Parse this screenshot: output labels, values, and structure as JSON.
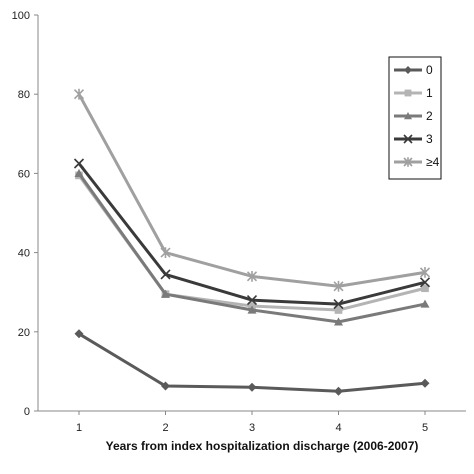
{
  "chart_data": {
    "type": "line",
    "title": "",
    "xlabel": "Years from index hospitalization discharge (2006-2007)",
    "ylabel": "",
    "x": [
      1,
      2,
      3,
      4,
      5
    ],
    "x_tick_labels": [
      "1",
      "2",
      "3",
      "4",
      "5"
    ],
    "ylim": [
      0,
      100
    ],
    "y_ticks": [
      0,
      20,
      40,
      60,
      80,
      100
    ],
    "y_tick_labels": [
      "0",
      "20",
      "40",
      "60",
      "80",
      "100"
    ],
    "grid": false,
    "legend_position": "top-right",
    "series": [
      {
        "name": "0",
        "marker": "diamond",
        "color": "#5a5a5a",
        "values": [
          19.5,
          6.3,
          6.0,
          5.0,
          7.0
        ]
      },
      {
        "name": "1",
        "marker": "square",
        "color": "#b4b4b4",
        "values": [
          59.5,
          29.5,
          26.5,
          25.5,
          31.0
        ]
      },
      {
        "name": "2",
        "marker": "triangle",
        "color": "#7a7a7a",
        "values": [
          60.0,
          29.5,
          25.5,
          22.5,
          27.0
        ]
      },
      {
        "name": "3",
        "marker": "x",
        "color": "#3a3a3a",
        "values": [
          62.5,
          34.5,
          28.0,
          27.0,
          32.5
        ]
      },
      {
        "name": "≥4",
        "marker": "star",
        "color": "#a0a0a0",
        "values": [
          80.0,
          40.0,
          34.0,
          31.5,
          35.0
        ]
      }
    ]
  }
}
